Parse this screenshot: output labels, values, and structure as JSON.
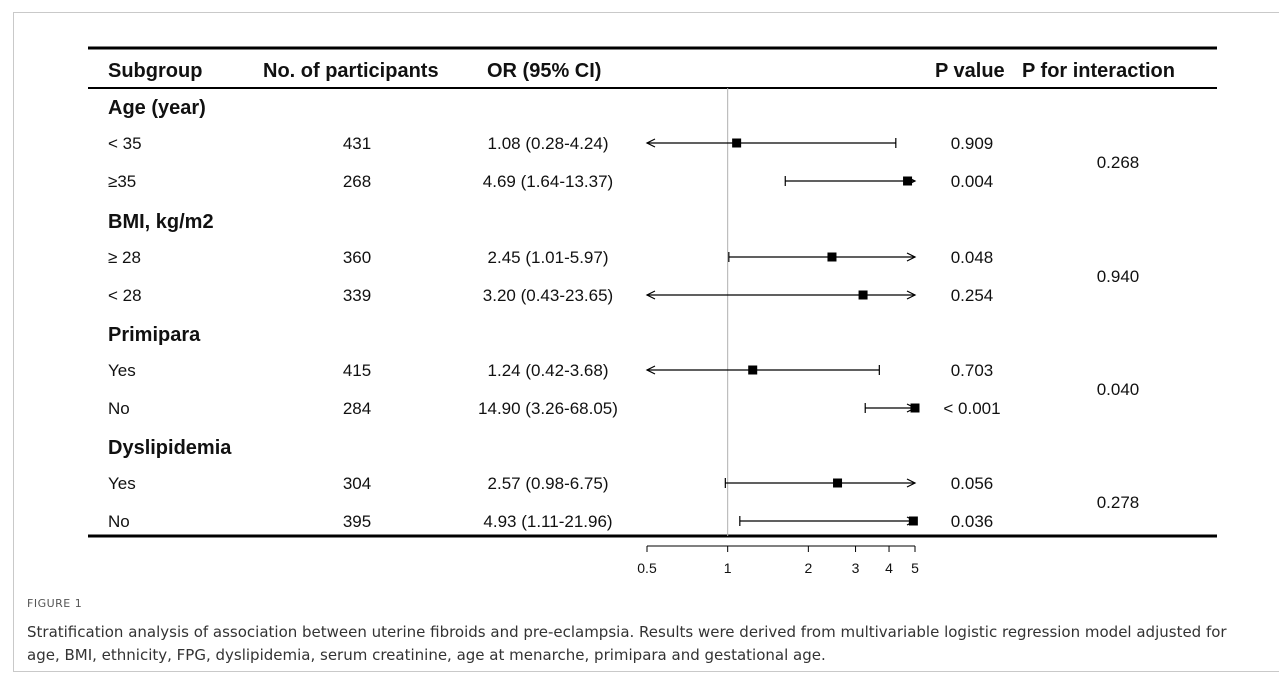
{
  "figure_label": "FIGURE 1",
  "caption": "Stratification analysis of association between uterine fibroids and pre-eclampsia. Results were derived from multivariable logistic regression model adjusted for age, BMI, ethnicity, FPG, dyslipidemia, serum creatinine, age at menarche, primipara and gestational age.",
  "chart_data": {
    "type": "forest",
    "columns": [
      "Subgroup",
      "No. of participants",
      "OR (95% CI)",
      "P value",
      "P for interaction"
    ],
    "x_scale": "log",
    "xlim": [
      0.5,
      5
    ],
    "x_ticks": [
      0.5,
      1,
      2,
      3,
      4,
      5
    ],
    "x_tick_labels": [
      "0.5",
      "1",
      "2",
      "3",
      "4",
      "5"
    ],
    "reference_line": 1,
    "colors": {
      "marker": "#000000",
      "reference_line": "#b0b0b0"
    },
    "groups": [
      {
        "name": "Age (year)",
        "p_interaction": "0.268",
        "rows": [
          {
            "label": "< 35",
            "n": "431",
            "or_text": "1.08 (0.28-4.24)",
            "or": 1.08,
            "lo": 0.28,
            "hi": 4.24,
            "p": "0.909"
          },
          {
            "label": "≥35",
            "n": "268",
            "or_text": "4.69 (1.64-13.37)",
            "or": 4.69,
            "lo": 1.64,
            "hi": 13.37,
            "p": "0.004"
          }
        ]
      },
      {
        "name": "BMI, kg/m2",
        "p_interaction": "0.940",
        "rows": [
          {
            "label": "≥ 28",
            "n": "360",
            "or_text": "2.45 (1.01-5.97)",
            "or": 2.45,
            "lo": 1.01,
            "hi": 5.97,
            "p": "0.048"
          },
          {
            "label": "< 28",
            "n": "339",
            "or_text": "3.20 (0.43-23.65)",
            "or": 3.2,
            "lo": 0.43,
            "hi": 23.65,
            "p": "0.254"
          }
        ]
      },
      {
        "name": "Primipara",
        "p_interaction": "0.040",
        "rows": [
          {
            "label": "Yes",
            "n": "415",
            "or_text": "1.24 (0.42-3.68)",
            "or": 1.24,
            "lo": 0.42,
            "hi": 3.68,
            "p": "0.703"
          },
          {
            "label": "No",
            "n": "284",
            "or_text": "14.90 (3.26-68.05)",
            "or": 14.9,
            "lo": 3.26,
            "hi": 68.05,
            "p": "< 0.001"
          }
        ]
      },
      {
        "name": "Dyslipidemia",
        "p_interaction": "0.278",
        "rows": [
          {
            "label": "Yes",
            "n": "304",
            "or_text": "2.57 (0.98-6.75)",
            "or": 2.57,
            "lo": 0.98,
            "hi": 6.75,
            "p": "0.056"
          },
          {
            "label": "No",
            "n": "395",
            "or_text": "4.93 (1.11-21.96)",
            "or": 4.93,
            "lo": 1.11,
            "hi": 21.96,
            "p": "0.036"
          }
        ]
      }
    ]
  }
}
